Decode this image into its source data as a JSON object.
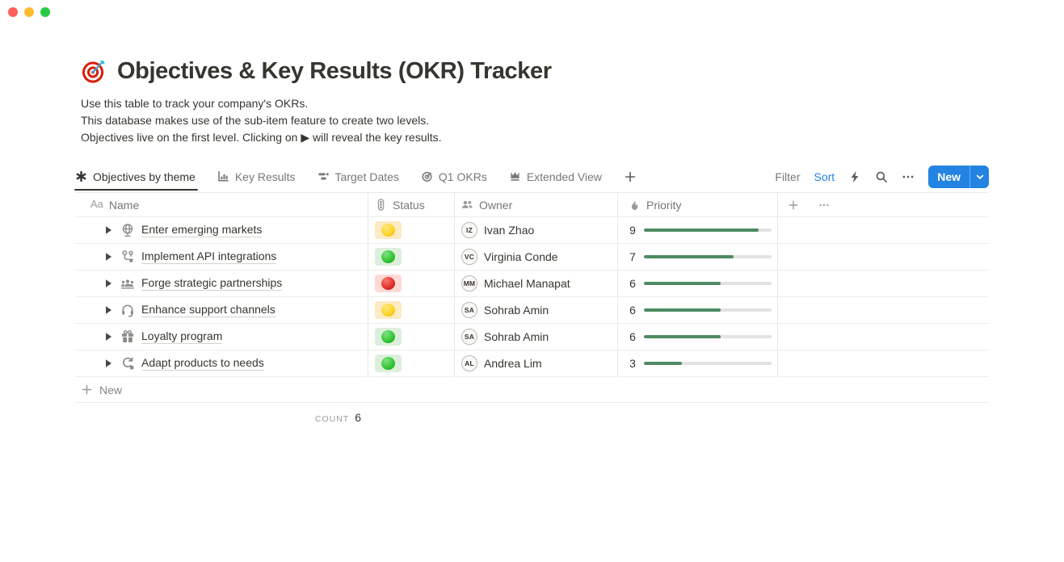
{
  "window": {
    "traffic_lights": [
      {
        "name": "close",
        "color": "#ff5f57"
      },
      {
        "name": "minimize",
        "color": "#febc2e"
      },
      {
        "name": "zoom",
        "color": "#28c840"
      }
    ]
  },
  "page": {
    "icon": "dartboard-emoji",
    "title": "Objectives & Key Results (OKR) Tracker",
    "description": [
      "Use this table to track your company's OKRs.",
      "This database makes use of the sub-item feature to create two levels.",
      "Objectives live on the first level. Clicking on ▶ will reveal the key results."
    ]
  },
  "toolbar": {
    "tabs": [
      {
        "label": "Objectives by theme",
        "icon": "asterisk-view-icon",
        "active": true
      },
      {
        "label": "Key Results",
        "icon": "chart-view-icon",
        "active": false
      },
      {
        "label": "Target Dates",
        "icon": "timeline-view-icon",
        "active": false
      },
      {
        "label": "Q1 OKRs",
        "icon": "target-view-icon",
        "active": false
      },
      {
        "label": "Extended View",
        "icon": "crown-view-icon",
        "active": false
      }
    ],
    "controls": {
      "filter_label": "Filter",
      "sort_label": "Sort",
      "icons": [
        "bolt-icon",
        "search-icon",
        "ellipsis-icon"
      ],
      "new_label": "New"
    }
  },
  "table": {
    "columns": [
      {
        "label": "Name",
        "icon": "text-icon"
      },
      {
        "label": "Status",
        "icon": "traffic-light-icon"
      },
      {
        "label": "Owner",
        "icon": "people-icon"
      },
      {
        "label": "Priority",
        "icon": "flame-icon"
      }
    ],
    "priority_max": 10,
    "rows": [
      {
        "name": "Enter emerging markets",
        "icon": "globe-icon",
        "status": "yellow",
        "owner": "Ivan Zhao",
        "priority": 9
      },
      {
        "name": "Implement API integrations",
        "icon": "workflow-icon",
        "status": "green",
        "owner": "Virginia Conde",
        "priority": 7
      },
      {
        "name": "Forge strategic partnerships",
        "icon": "partnership-icon",
        "status": "red",
        "owner": "Michael Manapat",
        "priority": 6
      },
      {
        "name": "Enhance support channels",
        "icon": "headset-icon",
        "status": "yellow",
        "owner": "Sohrab Amin",
        "priority": 6
      },
      {
        "name": "Loyalty program",
        "icon": "gift-icon",
        "status": "green",
        "owner": "Sohrab Amin",
        "priority": 6
      },
      {
        "name": "Adapt products to needs",
        "icon": "adapt-icon",
        "status": "green",
        "owner": "Andrea Lim",
        "priority": 3
      }
    ],
    "new_row_label": "New",
    "footer": {
      "count_label": "COUNT",
      "count_value": "6"
    }
  },
  "colors": {
    "accent_blue": "#2383e2",
    "progress_green": "#4e8a63",
    "status": {
      "yellow": {
        "bg": "#fbeac2",
        "grad": [
          "#ffe978",
          "#fcd323",
          "#dfa700"
        ]
      },
      "green": {
        "bg": "#dcefdc",
        "grad": [
          "#7fe37f",
          "#2ec231",
          "#0e9c17"
        ]
      },
      "red": {
        "bg": "#ffd9d6",
        "grad": [
          "#f87a70",
          "#dd2c23",
          "#a81313"
        ]
      }
    }
  }
}
